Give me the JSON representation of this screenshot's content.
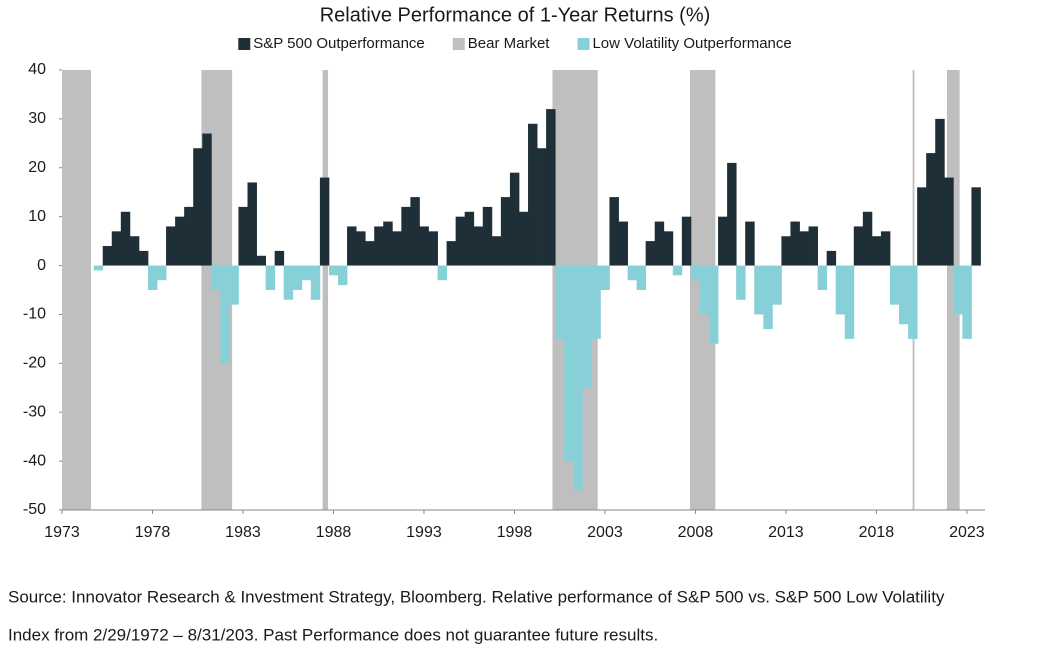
{
  "chart_data": {
    "type": "bar",
    "title": "Relative Performance of 1-Year Returns (%)",
    "legend": "top",
    "x": [
      1975,
      1975.5,
      1976,
      1976.5,
      1977,
      1977.5,
      1978,
      1978.5,
      1979,
      1979.5,
      1980,
      1980.5,
      1981,
      1981.5,
      1982,
      1982.5,
      1983,
      1983.5,
      1984,
      1984.5,
      1985,
      1985.5,
      1986,
      1986.5,
      1987,
      1987.5,
      1988,
      1988.5,
      1989,
      1989.5,
      1990,
      1990.5,
      1991,
      1991.5,
      1992,
      1992.5,
      1993,
      1993.5,
      1994,
      1994.5,
      1995,
      1995.5,
      1996,
      1996.5,
      1997,
      1997.5,
      1998,
      1998.5,
      1999,
      1999.5,
      2000,
      2000.5,
      2001,
      2001.5,
      2002,
      2002.5,
      2003,
      2003.5,
      2004,
      2004.5,
      2005,
      2005.5,
      2006,
      2006.5,
      2007,
      2007.5,
      2008,
      2008.5,
      2009,
      2009.5,
      2010,
      2010.5,
      2011,
      2011.5,
      2012,
      2012.5,
      2013,
      2013.5,
      2014,
      2014.5,
      2015,
      2015.5,
      2016,
      2016.5,
      2017,
      2017.5,
      2018,
      2018.5,
      2019,
      2019.5,
      2020,
      2020.5,
      2021,
      2021.5,
      2022,
      2022.5,
      2023,
      2023.5
    ],
    "series": [
      {
        "name": "S&P 500 Outperformance",
        "color": "#1e2f38",
        "values": [
          null,
          4,
          7,
          11,
          6,
          3,
          null,
          null,
          8,
          10,
          12,
          24,
          27,
          null,
          null,
          null,
          12,
          17,
          2,
          null,
          3,
          null,
          null,
          null,
          null,
          18,
          null,
          null,
          8,
          7,
          5,
          8,
          9,
          7,
          12,
          14,
          8,
          7,
          null,
          5,
          10,
          11,
          8,
          12,
          6,
          14,
          19,
          11,
          29,
          24,
          32,
          null,
          null,
          null,
          null,
          null,
          null,
          14,
          9,
          null,
          null,
          5,
          9,
          7,
          null,
          10,
          null,
          null,
          null,
          10,
          21,
          null,
          9,
          null,
          null,
          null,
          6,
          9,
          7,
          8,
          null,
          3,
          null,
          null,
          8,
          11,
          6,
          7,
          null,
          null,
          null,
          16,
          23,
          30,
          18,
          null,
          null,
          16
        ]
      },
      {
        "name": "Low Volatility Outperformance",
        "color": "#88d0d8",
        "values": [
          -1,
          null,
          null,
          null,
          null,
          null,
          -5,
          -3,
          null,
          null,
          null,
          null,
          null,
          -5,
          -20,
          -8,
          null,
          null,
          null,
          -5,
          null,
          -7,
          -5,
          -3,
          -7,
          null,
          -2,
          -4,
          null,
          null,
          null,
          null,
          null,
          null,
          null,
          null,
          null,
          null,
          -3,
          null,
          null,
          null,
          null,
          null,
          null,
          null,
          null,
          null,
          null,
          null,
          null,
          -15,
          -40,
          -46,
          -25,
          -15,
          -5,
          null,
          null,
          -3,
          -5,
          null,
          null,
          null,
          -2,
          null,
          -3,
          -10,
          -16,
          null,
          null,
          -7,
          null,
          -10,
          -13,
          -8,
          null,
          null,
          null,
          null,
          -5,
          null,
          -10,
          -15,
          null,
          null,
          null,
          null,
          -8,
          -12,
          -15,
          null,
          null,
          null,
          null,
          -10,
          -15,
          null
        ]
      }
    ],
    "bear_markets": {
      "name": "Bear Market",
      "color": "#bfbfbf",
      "ranges": [
        [
          1973,
          1974.6
        ],
        [
          1980.7,
          1982.4
        ],
        [
          1987.4,
          1987.7
        ],
        [
          2000.1,
          2002.6
        ],
        [
          2007.7,
          2009.1
        ],
        [
          2020,
          2020.1
        ],
        [
          2021.9,
          2022.6
        ]
      ]
    },
    "xlim": [
      1973,
      2024
    ],
    "xticks": [
      1973,
      1978,
      1983,
      1988,
      1993,
      1998,
      2003,
      2008,
      2013,
      2018,
      2023
    ],
    "ylim": [
      -50,
      40
    ],
    "yticks": [
      -50,
      -40,
      -30,
      -20,
      -10,
      0,
      10,
      20,
      30,
      40
    ],
    "source": [
      "Source: Innovator Research & Investment Strategy, Bloomberg. Relative performance of S&P 500 vs. S&P 500 Low Volatility",
      "Index from 2/29/1972 – 8/31/203. Past Performance does not guarantee future results."
    ]
  }
}
